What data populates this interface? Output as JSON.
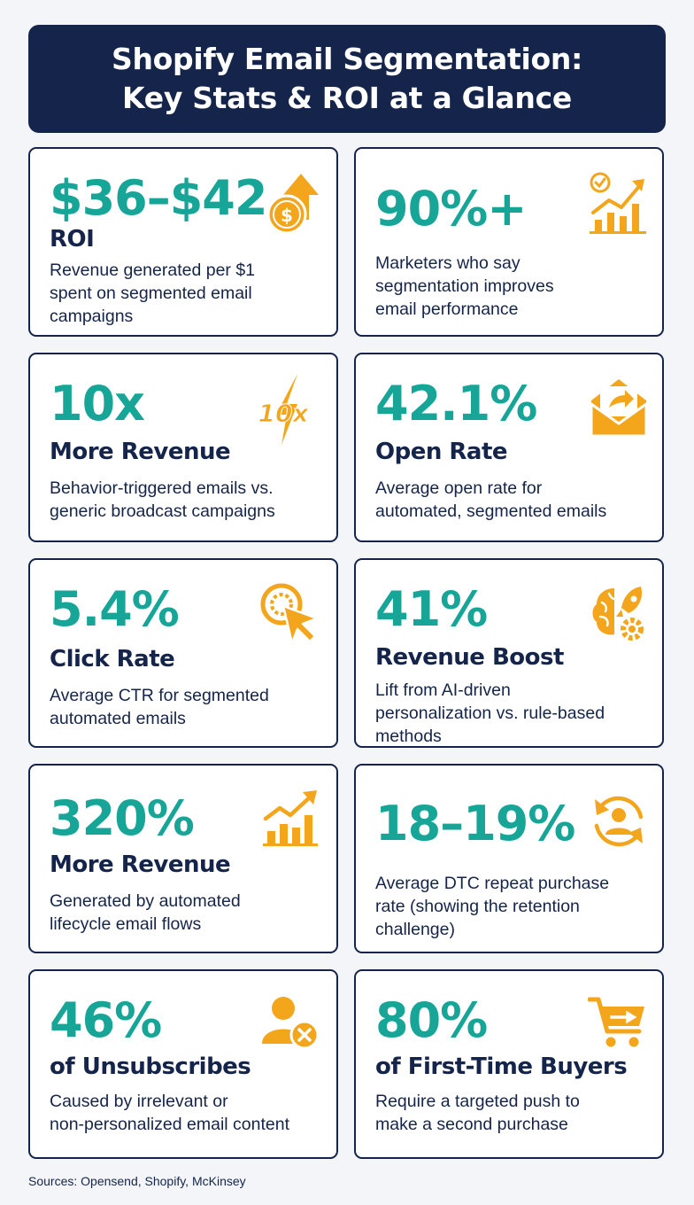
{
  "header": {
    "line1": "Shopify Email Segmentation:",
    "line2": "Key Stats & ROI at a Glance"
  },
  "colors": {
    "navy": "#15244a",
    "teal": "#16a597",
    "orange": "#f3a51c",
    "background": "#f3f5f8"
  },
  "cards": [
    {
      "stat": "$36–$42",
      "label": "ROI",
      "desc": [
        "Revenue generated per $1",
        "spent on segmented email",
        "campaigns"
      ],
      "icon": "dollar-coin-growth-icon"
    },
    {
      "stat": "90%+",
      "label": "",
      "desc": [
        "Marketers who say",
        "segmentation improves",
        "email performance"
      ],
      "icon": "bar-chart-check-icon"
    },
    {
      "stat": "10x",
      "label": "More Revenue",
      "desc": [
        "Behavior-triggered emails vs.",
        "generic broadcast campaigns"
      ],
      "icon": "lightning-10x-icon",
      "icon_text": "10x"
    },
    {
      "stat": "42.1%",
      "label": "Open Rate",
      "desc": [
        "Average open rate for",
        "automated, segmented emails"
      ],
      "icon": "open-envelope-icon"
    },
    {
      "stat": "5.4%",
      "label": "Click Rate",
      "desc": [
        "Average CTR for segmented",
        "automated emails"
      ],
      "icon": "cursor-click-icon"
    },
    {
      "stat": "41%",
      "label": "Revenue Boost",
      "desc": [
        "Lift from AI-driven",
        "personalization vs. rule-based",
        "methods"
      ],
      "icon": "ai-brain-rocket-icon"
    },
    {
      "stat": "320%",
      "label": "More Revenue",
      "desc": [
        "Generated by automated",
        "lifecycle email flows"
      ],
      "icon": "growth-chart-icon"
    },
    {
      "stat": "18–19%",
      "label": "",
      "desc": [
        "Average DTC repeat purchase",
        "rate (showing the retention",
        "challenge)"
      ],
      "icon": "repeat-customer-icon"
    },
    {
      "stat": "46%",
      "label": "of Unsubscribes",
      "desc": [
        "Caused by irrelevant or",
        "non-personalized email content"
      ],
      "icon": "user-remove-icon"
    },
    {
      "stat": "80%",
      "label": "of First-Time Buyers",
      "desc": [
        "Require a targeted push to",
        "make a second purchase"
      ],
      "icon": "shopping-cart-arrow-icon"
    }
  ],
  "footer": {
    "sources": "Sources: Opensend, Shopify, McKinsey"
  }
}
